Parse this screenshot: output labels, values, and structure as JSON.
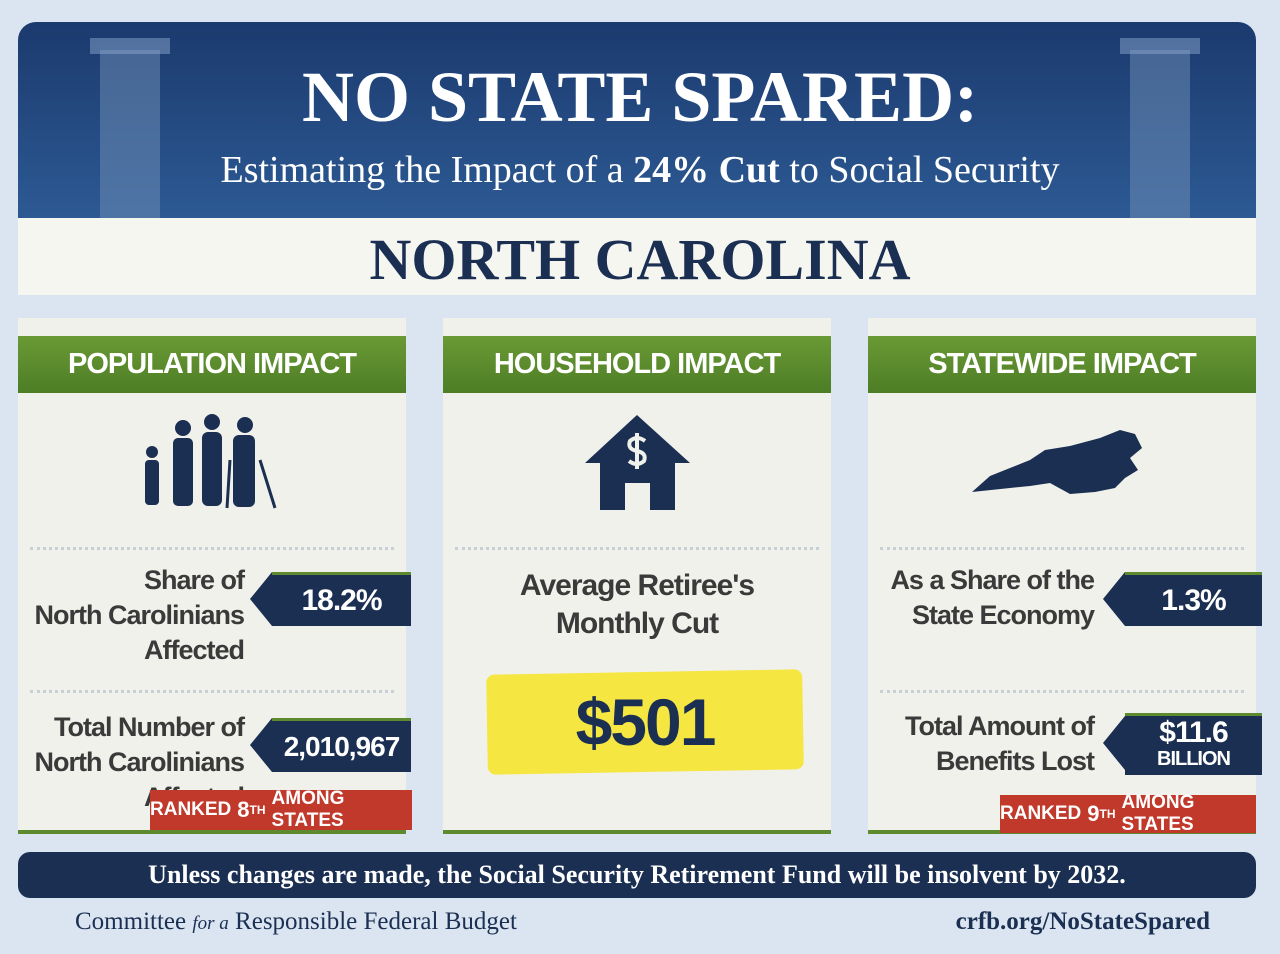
{
  "header": {
    "title": "NO STATE SPARED:",
    "subtitle_pre": "Estimating the Impact of a",
    "subtitle_bold": "24% Cut",
    "subtitle_post": "to Social Security"
  },
  "state": "NORTH CAROLINA",
  "panels": [
    {
      "heading": "POPULATION IMPACT",
      "stats": [
        {
          "label": [
            "Share of",
            "North Carolinians",
            "Affected"
          ],
          "value": "18.2%"
        },
        {
          "label": [
            "Total Number of",
            "North Carolinians",
            "Affected"
          ],
          "value": "2,010,967"
        }
      ],
      "rank": {
        "prefix": "RANKED",
        "number": "8",
        "suffix": "TH",
        "rest": "AMONG STATES"
      }
    },
    {
      "heading": "HOUSEHOLD IMPACT",
      "stats": [
        {
          "label": [
            "Average Retiree's",
            "Monthly Cut"
          ],
          "value": "$501"
        }
      ]
    },
    {
      "heading": "STATEWIDE IMPACT",
      "stats": [
        {
          "label": [
            "As a Share of the",
            "State Economy"
          ],
          "value": "1.3%"
        },
        {
          "label": [
            "Total Amount of",
            "Benefits Lost"
          ],
          "value": "$11.6",
          "unit": "BILLION"
        }
      ],
      "rank": {
        "prefix": "RANKED",
        "number": "9",
        "suffix": "TH",
        "rest": "AMONG STATES"
      }
    }
  ],
  "footer": {
    "note": "Unless changes are made, the Social Security Retirement Fund will be insolvent by 2032.",
    "org_pre": "Committee",
    "org_mid": "for a",
    "org_post": "Responsible Federal Budget",
    "url": "crfb.org/NoStateSpared"
  }
}
